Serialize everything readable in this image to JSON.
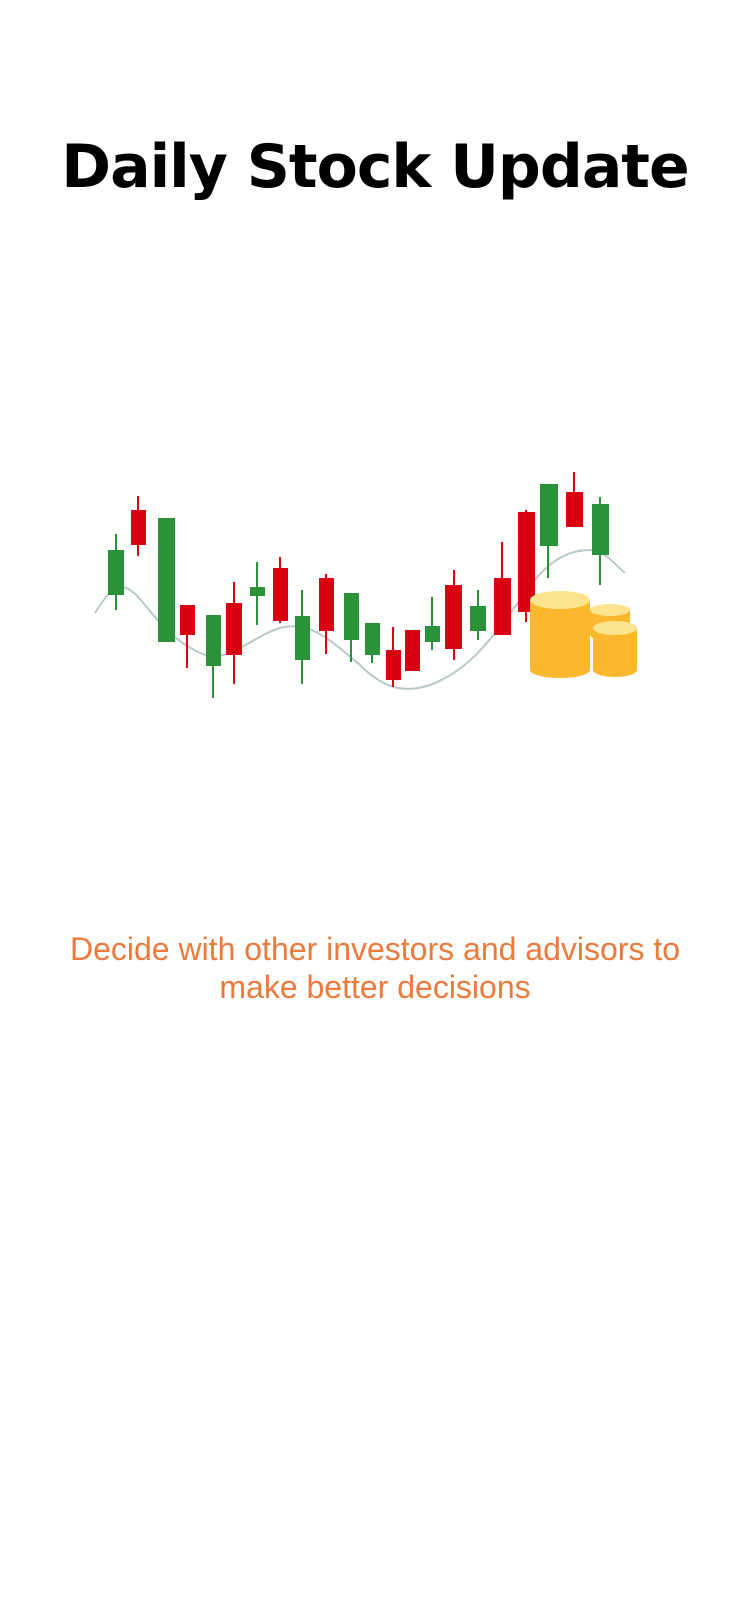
{
  "title": "Daily Stock Update",
  "tagline": "Decide with other investors and advisors to make better decisions",
  "colors": {
    "title": "#000000",
    "tagline": "#ec7a3c",
    "candle_up": "#2a9239",
    "candle_down": "#d90011",
    "trend_line": "#b8c9cc",
    "coin": "#fbb82f",
    "coin_top": "#fde48f"
  },
  "illustration": {
    "icon": "candlestick-chart-with-coins-icon"
  }
}
